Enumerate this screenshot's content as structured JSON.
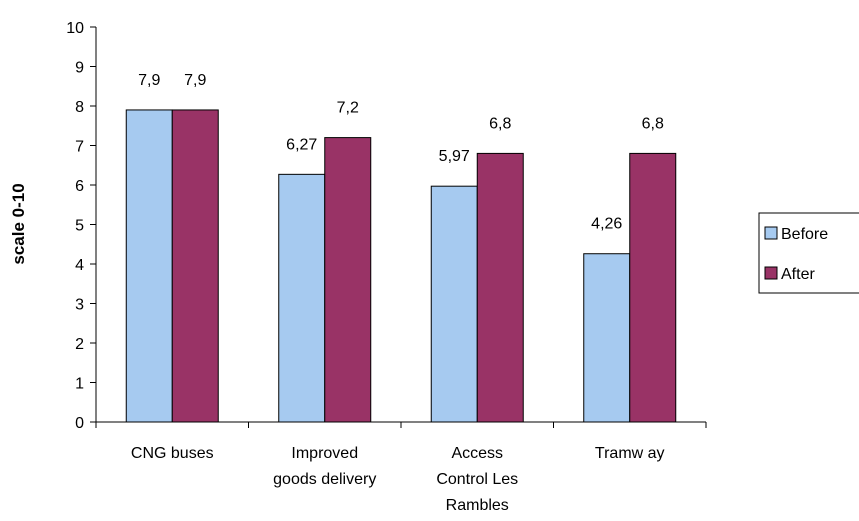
{
  "chart_data": {
    "type": "bar",
    "categories": [
      [
        "CNG buses"
      ],
      [
        "Improved",
        "goods delivery"
      ],
      [
        "Access",
        "Control Les",
        "Rambles"
      ],
      [
        "Tramw ay"
      ]
    ],
    "series": [
      {
        "name": "Before",
        "values": [
          7.9,
          6.27,
          5.97,
          4.26
        ],
        "labels": [
          "7,9",
          "6,27",
          "5,97",
          "4,26"
        ],
        "color": "#a6caf0"
      },
      {
        "name": "After",
        "values": [
          7.9,
          7.2,
          6.8,
          6.8
        ],
        "labels": [
          "7,9",
          "7,2",
          "6,8",
          "6,8"
        ],
        "color": "#993366"
      }
    ],
    "ylabel": "scale 0-10",
    "xlabel": "",
    "ylim": [
      0,
      10
    ],
    "yticks": [
      0,
      1,
      2,
      3,
      4,
      5,
      6,
      7,
      8,
      9,
      10
    ],
    "grid": false,
    "legend": {
      "position": "right"
    }
  }
}
